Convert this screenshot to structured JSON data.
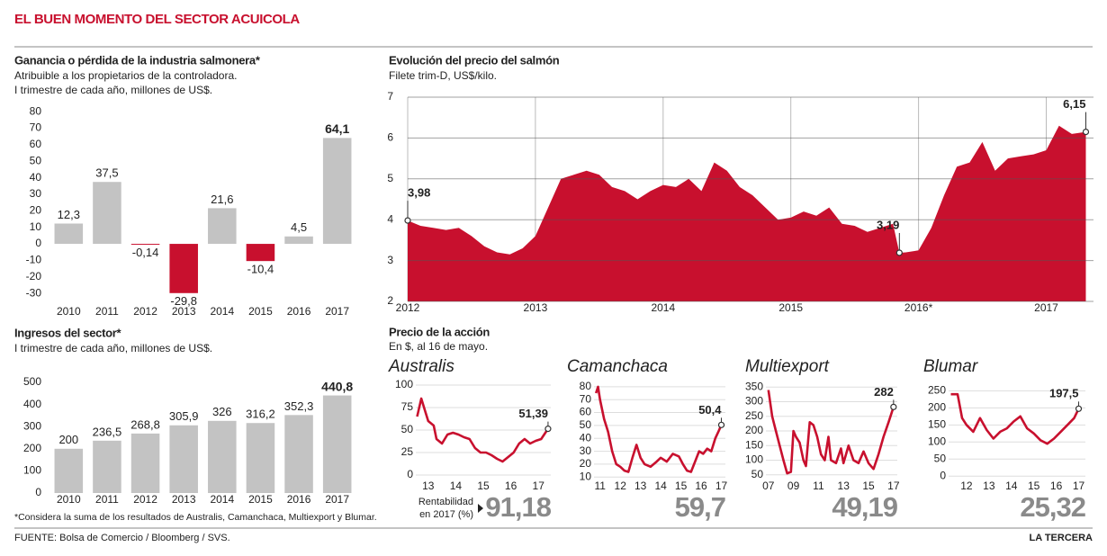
{
  "header": {
    "title": "EL BUEN MOMENTO DEL SECTOR ACUICOLA"
  },
  "chart_data": [
    {
      "type": "bar",
      "title": "Ganancia o pérdida de la industria salmonera*",
      "subtitle": [
        "Atribuible a los propietarios de la controladora.",
        "I trimestre de cada año, millones de US$."
      ],
      "categories": [
        "2010",
        "2011",
        "2012",
        "2013",
        "2014",
        "2015",
        "2016",
        "2017"
      ],
      "values": [
        12.3,
        37.5,
        -0.14,
        -29.8,
        21.6,
        -10.4,
        4.5,
        64.1
      ],
      "value_labels": [
        "12,3",
        "37,5",
        "-0,14",
        "-29,8",
        "21,6",
        "-10,4",
        "4,5",
        "64,1"
      ],
      "colors": [
        "#c3c3c3",
        "#c3c3c3",
        "#c8102e",
        "#c8102e",
        "#c3c3c3",
        "#c8102e",
        "#c3c3c3",
        "#c3c3c3"
      ],
      "ylim": [
        -37,
        85
      ],
      "yticks": [
        -30,
        -20,
        -10,
        0,
        10,
        20,
        30,
        40,
        50,
        60,
        70,
        80
      ]
    },
    {
      "type": "bar",
      "title": "Ingresos del sector*",
      "subtitle": [
        "I trimestre de cada año, millones de US$."
      ],
      "categories": [
        "2010",
        "2011",
        "2012",
        "2013",
        "2014",
        "2015",
        "2016",
        "2017"
      ],
      "values": [
        200,
        236.5,
        268.8,
        305.9,
        326,
        316.2,
        352.3,
        440.8
      ],
      "value_labels": [
        "200",
        "236,5",
        "268,8",
        "305,9",
        "326",
        "316,2",
        "352,3",
        "440,8"
      ],
      "colors": [
        "#c3c3c3",
        "#c3c3c3",
        "#c3c3c3",
        "#c3c3c3",
        "#c3c3c3",
        "#c3c3c3",
        "#c3c3c3",
        "#c3c3c3"
      ],
      "ylim": [
        0,
        500
      ],
      "yticks": [
        0,
        100,
        200,
        300,
        400,
        500
      ],
      "note": "*Considera la suma de los resultados de Australis, Camanchaca, Multiexport y Blumar."
    },
    {
      "type": "area",
      "title": "Evolución del precio del salmón",
      "subtitle": [
        "Filete trim-D, US$/kilo."
      ],
      "color": "#c8102e",
      "x": [
        2012.0,
        2012.1,
        2012.2,
        2012.3,
        2012.4,
        2012.5,
        2012.6,
        2012.7,
        2012.8,
        2012.9,
        2013.0,
        2013.1,
        2013.2,
        2013.3,
        2013.4,
        2013.5,
        2013.6,
        2013.7,
        2013.8,
        2013.9,
        2014.0,
        2014.1,
        2014.2,
        2014.3,
        2014.4,
        2014.5,
        2014.6,
        2014.7,
        2014.8,
        2014.9,
        2015.0,
        2015.1,
        2015.2,
        2015.3,
        2015.4,
        2015.5,
        2015.6,
        2015.7,
        2015.8,
        2015.85,
        2015.9,
        2016.0,
        2016.1,
        2016.2,
        2016.3,
        2016.4,
        2016.5,
        2016.6,
        2016.7,
        2016.8,
        2016.9,
        2017.0,
        2017.1,
        2017.2,
        2017.31
      ],
      "values": [
        3.98,
        3.85,
        3.8,
        3.75,
        3.8,
        3.6,
        3.35,
        3.2,
        3.15,
        3.3,
        3.6,
        4.3,
        5.0,
        5.1,
        5.2,
        5.1,
        4.8,
        4.7,
        4.5,
        4.7,
        4.85,
        4.8,
        5.0,
        4.7,
        5.4,
        5.2,
        4.8,
        4.6,
        4.3,
        4.0,
        4.05,
        4.2,
        4.1,
        4.3,
        3.9,
        3.85,
        3.7,
        3.8,
        3.9,
        3.19,
        3.2,
        3.25,
        3.8,
        4.6,
        5.3,
        5.4,
        5.9,
        5.2,
        5.5,
        5.55,
        5.6,
        5.7,
        6.3,
        6.1,
        6.15
      ],
      "value_labels": [
        "3,98",
        null,
        null,
        null,
        null,
        null,
        null,
        null,
        null,
        null,
        null,
        null,
        null,
        null,
        null,
        null,
        null,
        null,
        null,
        null,
        null,
        null,
        null,
        null,
        null,
        null,
        null,
        null,
        null,
        null,
        null,
        null,
        null,
        null,
        null,
        null,
        null,
        null,
        null,
        "3,19",
        null,
        null,
        null,
        null,
        null,
        null,
        null,
        null,
        null,
        null,
        null,
        null,
        null,
        null,
        "6,15"
      ],
      "xlim": [
        2012,
        2017.37
      ],
      "xticks": [
        2012,
        2013,
        2014,
        2015,
        {
          "value": 2016,
          "label": "2016*"
        },
        2017
      ],
      "ylim": [
        2,
        7
      ],
      "yticks": [
        2,
        3,
        4,
        5,
        6,
        7
      ]
    },
    {
      "type": "line",
      "title": "Australis",
      "color": "#c8102e",
      "return_label": "91,18",
      "x": [
        2012.6,
        2012.75,
        2012.9,
        2013.0,
        2013.2,
        2013.3,
        2013.5,
        2013.7,
        2013.9,
        2014.1,
        2014.3,
        2014.5,
        2014.7,
        2014.9,
        2015.1,
        2015.3,
        2015.5,
        2015.7,
        2015.9,
        2016.1,
        2016.3,
        2016.5,
        2016.7,
        2016.9,
        2017.1,
        2017.35
      ],
      "values": [
        65,
        85,
        70,
        60,
        55,
        40,
        35,
        45,
        47,
        45,
        42,
        40,
        30,
        25,
        25,
        22,
        18,
        15,
        20,
        25,
        35,
        40,
        35,
        38,
        40,
        51.39
      ],
      "value_labels": [
        null,
        null,
        null,
        null,
        null,
        null,
        null,
        null,
        null,
        null,
        null,
        null,
        null,
        null,
        null,
        null,
        null,
        null,
        null,
        null,
        null,
        null,
        null,
        null,
        null,
        "51,39"
      ],
      "xlim": [
        2012.55,
        2017.45
      ],
      "xticks": [
        {
          "value": 2013,
          "label": "13"
        },
        {
          "value": 2014,
          "label": "14"
        },
        {
          "value": 2015,
          "label": "15"
        },
        {
          "value": 2016,
          "label": "16"
        },
        {
          "value": 2017,
          "label": "17"
        }
      ],
      "ylim": [
        -5,
        102
      ],
      "yticks": [
        0,
        25,
        50,
        75,
        100
      ]
    },
    {
      "type": "line",
      "title": "Camanchaca",
      "color": "#c8102e",
      "return_label": "59,7",
      "x": [
        2010.8,
        2010.9,
        2011.0,
        2011.2,
        2011.4,
        2011.6,
        2011.8,
        2012.0,
        2012.2,
        2012.4,
        2012.6,
        2012.8,
        2013.0,
        2013.2,
        2013.5,
        2013.8,
        2014.0,
        2014.3,
        2014.6,
        2014.9,
        2015.1,
        2015.3,
        2015.5,
        2015.7,
        2015.9,
        2016.1,
        2016.3,
        2016.5,
        2016.7,
        2016.85,
        2017.0
      ],
      "values": [
        75,
        80,
        70,
        55,
        45,
        30,
        20,
        18,
        15,
        14,
        25,
        35,
        25,
        20,
        18,
        22,
        25,
        22,
        28,
        26,
        20,
        15,
        14,
        22,
        30,
        28,
        32,
        30,
        40,
        45,
        50.4
      ],
      "value_labels": [
        null,
        null,
        null,
        null,
        null,
        null,
        null,
        null,
        null,
        null,
        null,
        null,
        null,
        null,
        null,
        null,
        null,
        null,
        null,
        null,
        null,
        null,
        null,
        null,
        null,
        null,
        null,
        null,
        null,
        null,
        "50,4"
      ],
      "xlim": [
        2010.7,
        2017.2
      ],
      "xticks": [
        {
          "value": 2011,
          "label": "11"
        },
        {
          "value": 2012,
          "label": "12"
        },
        {
          "value": 2013,
          "label": "13"
        },
        {
          "value": 2014,
          "label": "14"
        },
        {
          "value": 2015,
          "label": "15"
        },
        {
          "value": 2016,
          "label": "16"
        },
        {
          "value": 2017,
          "label": "17"
        }
      ],
      "ylim": [
        6,
        82
      ],
      "yticks": [
        10,
        20,
        30,
        40,
        50,
        60,
        70,
        80
      ]
    },
    {
      "type": "line",
      "title": "Multiexport",
      "color": "#c8102e",
      "return_label": "49,19",
      "x": [
        2007.0,
        2007.3,
        2007.6,
        2007.9,
        2008.2,
        2008.5,
        2008.8,
        2009.0,
        2009.2,
        2009.5,
        2009.8,
        2010.0,
        2010.3,
        2010.6,
        2010.9,
        2011.2,
        2011.5,
        2011.8,
        2012.0,
        2012.4,
        2012.8,
        2013.0,
        2013.4,
        2013.8,
        2014.2,
        2014.6,
        2015.0,
        2015.4,
        2015.8,
        2016.2,
        2016.6,
        2017.0
      ],
      "values": [
        340,
        250,
        200,
        150,
        100,
        55,
        60,
        200,
        180,
        160,
        100,
        80,
        230,
        220,
        180,
        120,
        100,
        180,
        100,
        90,
        140,
        90,
        150,
        100,
        90,
        130,
        90,
        70,
        120,
        180,
        230,
        282
      ],
      "value_labels": [
        null,
        null,
        null,
        null,
        null,
        null,
        null,
        null,
        null,
        null,
        null,
        null,
        null,
        null,
        null,
        null,
        null,
        null,
        null,
        null,
        null,
        null,
        null,
        null,
        null,
        null,
        null,
        null,
        null,
        null,
        null,
        "282"
      ],
      "xlim": [
        2006.8,
        2017.3
      ],
      "xticks": [
        {
          "value": 2007,
          "label": "07"
        },
        {
          "value": 2009,
          "label": "09"
        },
        {
          "value": 2011,
          "label": "11"
        },
        {
          "value": 2013,
          "label": "13"
        },
        {
          "value": 2015,
          "label": "15"
        },
        {
          "value": 2017,
          "label": "17"
        }
      ],
      "ylim": [
        40,
        360
      ],
      "yticks": [
        50,
        100,
        150,
        200,
        250,
        300,
        350
      ]
    },
    {
      "type": "line",
      "title": "Blumar",
      "color": "#c8102e",
      "return_label": "25,32",
      "x": [
        2011.3,
        2011.6,
        2011.8,
        2012.0,
        2012.3,
        2012.6,
        2012.9,
        2013.2,
        2013.5,
        2013.8,
        2014.1,
        2014.4,
        2014.7,
        2015.0,
        2015.3,
        2015.6,
        2015.9,
        2016.2,
        2016.5,
        2016.8,
        2017.0
      ],
      "values": [
        240,
        240,
        170,
        150,
        130,
        170,
        135,
        110,
        130,
        140,
        160,
        175,
        140,
        125,
        105,
        95,
        110,
        130,
        150,
        170,
        197.5
      ],
      "value_labels": [
        null,
        null,
        null,
        null,
        null,
        null,
        null,
        null,
        null,
        null,
        null,
        null,
        null,
        null,
        null,
        null,
        null,
        null,
        null,
        null,
        "197,5"
      ],
      "xlim": [
        2011.2,
        2017.3
      ],
      "xticks": [
        {
          "value": 2012,
          "label": "12"
        },
        {
          "value": 2013,
          "label": "13"
        },
        {
          "value": 2014,
          "label": "14"
        },
        {
          "value": 2015,
          "label": "15"
        },
        {
          "value": 2016,
          "label": "16"
        },
        {
          "value": 2017,
          "label": "17"
        }
      ],
      "ylim": [
        -10,
        255
      ],
      "yticks": [
        0,
        50,
        100,
        150,
        200,
        250
      ]
    }
  ],
  "stock_section": {
    "title": "Precio de la acción",
    "subtitle": "En $, al 16 de mayo.",
    "return_caption": [
      "Rentabilidad",
      "en 2017 (%)"
    ]
  },
  "footer": {
    "source": "FUENTE: Bolsa de Comercio / Bloomberg / SVS.",
    "brand": "LA TERCERA"
  }
}
